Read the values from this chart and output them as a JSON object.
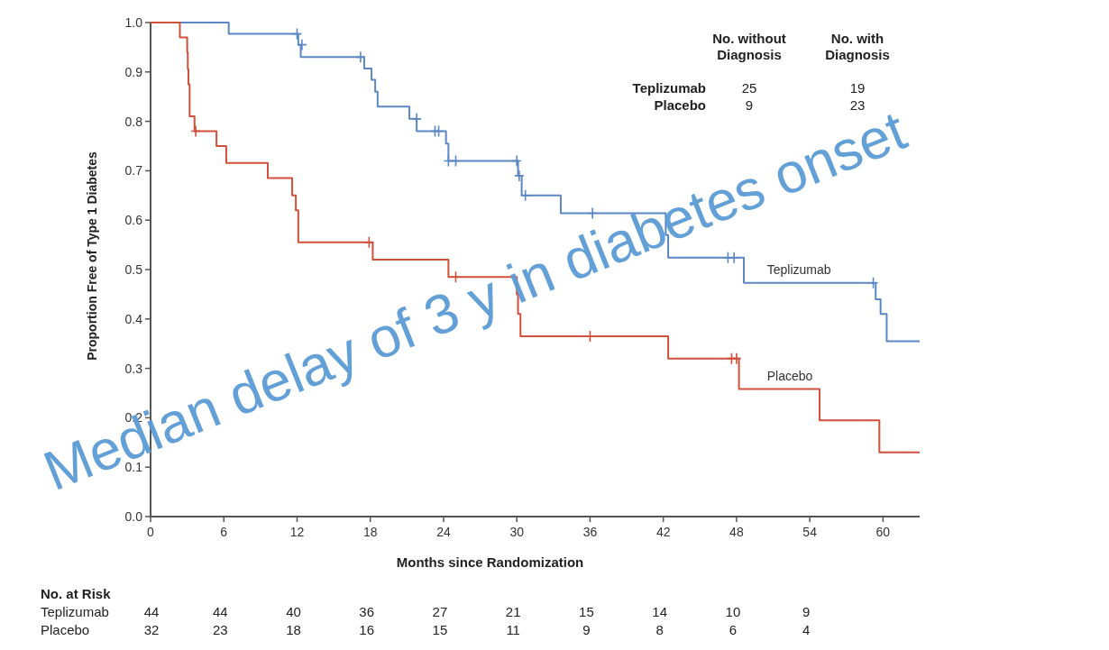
{
  "chart_data": {
    "type": "step",
    "xlabel": "Months since Randomization",
    "ylabel": "Proportion Free of Type 1 Diabetes",
    "xlim": [
      0,
      63
    ],
    "ylim": [
      0,
      1
    ],
    "xticks": [
      0,
      6,
      12,
      18,
      24,
      30,
      36,
      42,
      48,
      54,
      60
    ],
    "yticks": [
      {
        "value": 0,
        "label": "0.0"
      },
      0.1,
      0.2,
      0.3,
      0.4,
      0.5,
      0.6,
      0.7,
      0.8,
      0.9,
      {
        "value": 1,
        "label": "1.0"
      }
    ],
    "grid": false,
    "series": [
      {
        "name": "Teplizumab",
        "color": "#5b87c5",
        "x": [
          0,
          6.4,
          12.1,
          12.3,
          17.5,
          18.1,
          18.4,
          18.6,
          21.2,
          21.8,
          24.2,
          24.4,
          30.1,
          30.4,
          33.6,
          42.2,
          42.4,
          48.6,
          59.4,
          59.8,
          60.3,
          63
        ],
        "values": [
          1.0,
          0.977,
          0.955,
          0.93,
          0.907,
          0.884,
          0.86,
          0.83,
          0.805,
          0.78,
          0.755,
          0.72,
          0.69,
          0.65,
          0.614,
          0.57,
          0.524,
          0.473,
          0.44,
          0.41,
          0.355,
          0.355
        ]
      },
      {
        "name": "Placebo",
        "color": "#d0503a",
        "x": [
          0,
          2.4,
          3.0,
          3.05,
          3.1,
          3.2,
          3.6,
          5.4,
          6.2,
          9.6,
          11.6,
          11.9,
          12.1,
          18.2,
          24.4,
          30.0,
          30.1,
          30.3,
          42.4,
          48.2,
          54.8,
          59.7,
          63
        ],
        "values": [
          1.0,
          0.97,
          0.94,
          0.906,
          0.875,
          0.81,
          0.78,
          0.75,
          0.716,
          0.685,
          0.65,
          0.62,
          0.555,
          0.52,
          0.485,
          0.45,
          0.41,
          0.365,
          0.32,
          0.258,
          0.195,
          0.13,
          0.13
        ]
      },
      {
        "type": "scatter",
        "marker": "cross",
        "color": "#5b87c5",
        "x": [
          12.0,
          12.4,
          17.2,
          21.8,
          23.3,
          23.6,
          24.4,
          25.0,
          30.0,
          30.2,
          30.7,
          36.2,
          47.3,
          47.8,
          59.2
        ],
        "values": [
          0.977,
          0.955,
          0.93,
          0.805,
          0.78,
          0.78,
          0.72,
          0.72,
          0.72,
          0.69,
          0.65,
          0.614,
          0.524,
          0.524,
          0.473
        ]
      },
      {
        "type": "scatter",
        "marker": "cross",
        "color": "#d0503a",
        "x": [
          3.7,
          17.9,
          25.0,
          36.0,
          47.6,
          48.0
        ],
        "values": [
          0.78,
          0.555,
          0.485,
          0.365,
          0.32,
          0.32
        ]
      }
    ],
    "annotations": [
      "Median delay of 3 y in diabetes onset",
      "No. without\nDiagnosis",
      "No. with\nDiagnosis",
      "Teplizumab",
      "25",
      "19",
      "Placebo",
      "9",
      "23",
      "No. at Risk",
      "Teplizumab",
      "44",
      "44",
      "40",
      "36",
      "27",
      "21",
      "15",
      "14",
      "10",
      "9",
      "Placebo",
      "32",
      "23",
      "18",
      "16",
      "15",
      "11",
      "9",
      "8",
      "6",
      "4"
    ]
  }
}
